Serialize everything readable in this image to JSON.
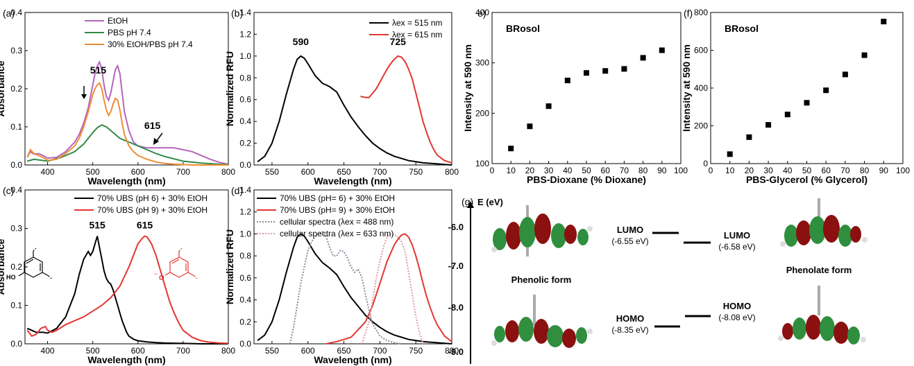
{
  "chart_data": [
    {
      "panel": "(a)",
      "type": "line",
      "xlabel": "Wavelength (nm)",
      "ylabel": "Absorbance",
      "xlim": [
        350,
        800
      ],
      "ylim": [
        0,
        0.4
      ],
      "xticks": [
        400,
        500,
        600,
        700,
        800
      ],
      "yticks": [
        0.0,
        0.1,
        0.2,
        0.3,
        0.4
      ],
      "legend": "top-center",
      "series": [
        {
          "name": "EtOH",
          "color": "#b565bd",
          "x": [
            355,
            362,
            370,
            380,
            390,
            400,
            420,
            440,
            460,
            470,
            480,
            490,
            500,
            505,
            510,
            515,
            520,
            525,
            530,
            535,
            540,
            545,
            550,
            555,
            560,
            565,
            570,
            580,
            590,
            600,
            620,
            640,
            660,
            680,
            700,
            720,
            740,
            760,
            780,
            800
          ],
          "y": [
            0.02,
            0.035,
            0.028,
            0.03,
            0.025,
            0.018,
            0.02,
            0.035,
            0.06,
            0.08,
            0.11,
            0.15,
            0.21,
            0.24,
            0.26,
            0.27,
            0.25,
            0.21,
            0.18,
            0.17,
            0.19,
            0.22,
            0.25,
            0.26,
            0.24,
            0.19,
            0.14,
            0.09,
            0.06,
            0.05,
            0.045,
            0.045,
            0.045,
            0.045,
            0.04,
            0.035,
            0.025,
            0.015,
            0.007,
            0.002
          ]
        },
        {
          "name": "PBS pH 7.4",
          "color": "#2e8b46",
          "x": [
            355,
            370,
            400,
            430,
            460,
            480,
            500,
            510,
            520,
            530,
            540,
            550,
            560,
            570,
            580,
            600,
            620,
            640,
            660,
            680,
            700,
            740,
            780,
            800
          ],
          "y": [
            0.01,
            0.015,
            0.01,
            0.02,
            0.035,
            0.055,
            0.085,
            0.098,
            0.105,
            0.1,
            0.09,
            0.08,
            0.07,
            0.065,
            0.06,
            0.05,
            0.04,
            0.03,
            0.022,
            0.016,
            0.01,
            0.005,
            0.002,
            0.001
          ]
        },
        {
          "name": "30% EtOH/PBS pH 7.4",
          "color": "#f08d35",
          "x": [
            355,
            362,
            370,
            380,
            390,
            400,
            420,
            440,
            460,
            470,
            480,
            490,
            500,
            505,
            510,
            515,
            520,
            525,
            530,
            535,
            540,
            545,
            550,
            555,
            560,
            565,
            570,
            580,
            590,
            600,
            620,
            640,
            660,
            680,
            700,
            720,
            740,
            760,
            780,
            800
          ],
          "y": [
            0.02,
            0.04,
            0.03,
            0.025,
            0.02,
            0.012,
            0.015,
            0.03,
            0.05,
            0.07,
            0.1,
            0.14,
            0.185,
            0.2,
            0.21,
            0.215,
            0.2,
            0.17,
            0.145,
            0.13,
            0.14,
            0.16,
            0.175,
            0.17,
            0.145,
            0.11,
            0.08,
            0.05,
            0.035,
            0.025,
            0.015,
            0.008,
            0.004,
            0.002,
            0.001,
            0.0,
            0.0,
            0.0,
            0.0,
            0.0
          ]
        }
      ],
      "annotations": [
        {
          "text": "515",
          "x": 512,
          "y": 0.24
        },
        {
          "text": "615",
          "x": 632,
          "y": 0.095
        }
      ]
    },
    {
      "panel": "(b)",
      "type": "line",
      "xlabel": "Wavelength (nm)",
      "ylabel": "Normalized RFU",
      "xlim": [
        525,
        800
      ],
      "ylim": [
        0,
        1.4
      ],
      "xticks": [
        550,
        600,
        650,
        700,
        750,
        800
      ],
      "yticks": [
        0.0,
        0.2,
        0.4,
        0.6,
        0.8,
        1.0,
        1.2,
        1.4
      ],
      "legend": "top-right",
      "series": [
        {
          "name": "λex = 515 nm",
          "color": "#000000",
          "x": [
            530,
            540,
            550,
            560,
            570,
            580,
            585,
            590,
            595,
            600,
            610,
            620,
            630,
            640,
            650,
            660,
            670,
            680,
            690,
            700,
            710,
            720,
            730,
            740,
            750,
            760,
            770,
            780,
            790,
            800
          ],
          "y": [
            0.03,
            0.08,
            0.2,
            0.4,
            0.65,
            0.88,
            0.97,
            1.0,
            0.98,
            0.93,
            0.82,
            0.75,
            0.72,
            0.67,
            0.55,
            0.44,
            0.35,
            0.27,
            0.2,
            0.15,
            0.11,
            0.08,
            0.06,
            0.04,
            0.03,
            0.02,
            0.015,
            0.01,
            0.005,
            0.0
          ]
        },
        {
          "name": "λex = 615 nm",
          "color": "#e2362f",
          "x": [
            673,
            680,
            685,
            690,
            695,
            700,
            705,
            710,
            715,
            720,
            725,
            730,
            735,
            740,
            745,
            750,
            755,
            760,
            765,
            770,
            775,
            780,
            790,
            800
          ],
          "y": [
            0.63,
            0.62,
            0.62,
            0.66,
            0.7,
            0.76,
            0.82,
            0.88,
            0.93,
            0.97,
            1.0,
            0.99,
            0.95,
            0.88,
            0.79,
            0.66,
            0.53,
            0.4,
            0.3,
            0.21,
            0.14,
            0.09,
            0.04,
            0.02
          ]
        }
      ],
      "annotations": [
        {
          "text": "590",
          "x": 590,
          "y": 1.1
        },
        {
          "text": "725",
          "x": 725,
          "y": 1.1
        }
      ]
    },
    {
      "panel": "(c)",
      "type": "line",
      "xlabel": "Wavelength (nm)",
      "ylabel": "Absorbance",
      "xlim": [
        350,
        800
      ],
      "ylim": [
        0,
        0.4
      ],
      "xticks": [
        400,
        500,
        600,
        700,
        800
      ],
      "yticks": [
        0.0,
        0.1,
        0.2,
        0.3,
        0.4
      ],
      "legend": "top-right",
      "series": [
        {
          "name": "70% UBS (pH 6) + 30% EtOH",
          "color": "#000000",
          "x": [
            355,
            365,
            375,
            390,
            400,
            420,
            440,
            460,
            470,
            480,
            490,
            495,
            500,
            505,
            510,
            515,
            520,
            525,
            530,
            535,
            540,
            545,
            550,
            555,
            560,
            565,
            570,
            575,
            580,
            590,
            600,
            620,
            640,
            660,
            700,
            740,
            780,
            800
          ],
          "y": [
            0.04,
            0.035,
            0.03,
            0.03,
            0.028,
            0.04,
            0.07,
            0.13,
            0.18,
            0.22,
            0.24,
            0.23,
            0.24,
            0.26,
            0.28,
            0.25,
            0.22,
            0.19,
            0.17,
            0.16,
            0.155,
            0.14,
            0.12,
            0.1,
            0.08,
            0.06,
            0.045,
            0.03,
            0.02,
            0.012,
            0.008,
            0.005,
            0.003,
            0.002,
            0.001,
            0.0,
            0.0,
            0.0
          ]
        },
        {
          "name": "70% UBS (pH 9) + 30% EtOH",
          "color": "#e2362f",
          "x": [
            355,
            365,
            375,
            385,
            395,
            400,
            410,
            420,
            440,
            460,
            480,
            500,
            520,
            540,
            560,
            580,
            590,
            600,
            610,
            615,
            620,
            630,
            640,
            650,
            660,
            670,
            680,
            690,
            700,
            720,
            740,
            760,
            780,
            800
          ],
          "y": [
            0.035,
            0.02,
            0.025,
            0.04,
            0.045,
            0.035,
            0.03,
            0.035,
            0.05,
            0.06,
            0.07,
            0.085,
            0.1,
            0.12,
            0.15,
            0.2,
            0.23,
            0.26,
            0.275,
            0.28,
            0.278,
            0.26,
            0.23,
            0.19,
            0.15,
            0.11,
            0.08,
            0.055,
            0.035,
            0.017,
            0.008,
            0.004,
            0.002,
            0.001
          ]
        }
      ],
      "annotations": [
        {
          "text": "515",
          "x": 510,
          "y": 0.3
        },
        {
          "text": "615",
          "x": 615,
          "y": 0.3
        }
      ]
    },
    {
      "panel": "(d)",
      "type": "line",
      "xlabel": "Wavelength (nm)",
      "ylabel": "Normalized RFU",
      "xlim": [
        525,
        800
      ],
      "ylim": [
        0,
        1.4
      ],
      "xticks": [
        550,
        600,
        650,
        700,
        750,
        800
      ],
      "yticks": [
        0.0,
        0.2,
        0.4,
        0.6,
        0.8,
        1.0,
        1.2,
        1.4
      ],
      "legend": "top-left",
      "series": [
        {
          "name": "70% UBS (pH= 6) + 30% EtOH",
          "color": "#000000",
          "dash": "",
          "x": [
            530,
            540,
            550,
            560,
            570,
            580,
            585,
            590,
            595,
            600,
            610,
            620,
            630,
            640,
            650,
            660,
            670,
            680,
            690,
            700,
            710,
            720,
            730,
            740,
            750,
            760,
            770,
            780,
            790,
            800
          ],
          "y": [
            0.03,
            0.08,
            0.2,
            0.4,
            0.65,
            0.88,
            0.97,
            1.0,
            0.98,
            0.93,
            0.82,
            0.74,
            0.69,
            0.63,
            0.52,
            0.42,
            0.34,
            0.26,
            0.2,
            0.15,
            0.11,
            0.08,
            0.06,
            0.04,
            0.03,
            0.02,
            0.015,
            0.01,
            0.005,
            0.0
          ]
        },
        {
          "name": "70% UBS (pH= 9) + 30% EtOH",
          "color": "#e2362f",
          "dash": "",
          "x": [
            625,
            640,
            660,
            680,
            690,
            700,
            710,
            720,
            725,
            730,
            735,
            740,
            745,
            750,
            755,
            760,
            765,
            770,
            775,
            780,
            790,
            800
          ],
          "y": [
            0.0,
            0.02,
            0.06,
            0.2,
            0.35,
            0.55,
            0.75,
            0.9,
            0.95,
            0.99,
            1.0,
            0.97,
            0.9,
            0.8,
            0.68,
            0.55,
            0.43,
            0.33,
            0.24,
            0.17,
            0.07,
            0.02
          ]
        },
        {
          "name": "cellular spectra (λex = 488 nm)",
          "color": "#8a8a9a",
          "dash": "2,2",
          "x": [
            575,
            580,
            585,
            590,
            595,
            600,
            605,
            610,
            615,
            620,
            625,
            630,
            635,
            640,
            645,
            650,
            655,
            660,
            665,
            670,
            675,
            680,
            685,
            690,
            700,
            710,
            720,
            730
          ],
          "y": [
            0.0,
            0.15,
            0.35,
            0.55,
            0.7,
            0.85,
            0.93,
            0.97,
            1.0,
            1.02,
            0.98,
            0.88,
            0.8,
            0.8,
            0.85,
            0.84,
            0.78,
            0.7,
            0.65,
            0.68,
            0.6,
            0.45,
            0.3,
            0.18,
            0.07,
            0.03,
            0.01,
            0.0
          ]
        },
        {
          "name": "cellular spectra (λex = 633 nm)",
          "color": "#d99aa0",
          "dash": "2,2",
          "x": [
            675,
            685,
            690,
            695,
            700,
            705,
            710,
            715,
            720,
            725,
            730,
            735,
            740,
            745,
            750,
            755,
            760
          ],
          "y": [
            0.0,
            0.2,
            0.4,
            0.6,
            0.75,
            0.88,
            0.97,
            1.0,
            0.99,
            0.97,
            0.93,
            0.84,
            0.65,
            0.45,
            0.25,
            0.1,
            0.0
          ]
        }
      ]
    },
    {
      "panel": "e",
      "type": "scatter",
      "title": "BRosol",
      "xlabel": "PBS-Dioxane (% Dioxane)",
      "ylabel": "Intensity at 590 nm",
      "xlim": [
        0,
        100
      ],
      "ylim": [
        100,
        400
      ],
      "xticks": [
        0,
        10,
        20,
        30,
        40,
        50,
        60,
        70,
        80,
        90,
        100
      ],
      "yticks": [
        100,
        200,
        300,
        400
      ],
      "x": [
        10,
        20,
        30,
        40,
        50,
        60,
        70,
        80,
        90
      ],
      "y": [
        130,
        174,
        214,
        265,
        280,
        284,
        288,
        310,
        325
      ]
    },
    {
      "panel": "f",
      "type": "scatter",
      "title": "BRosol",
      "xlabel": "PBS-Glycerol (% Glycerol)",
      "ylabel": "Intensity at 590 nm",
      "xlim": [
        0,
        100
      ],
      "ylim": [
        0,
        800
      ],
      "xticks": [
        0,
        10,
        20,
        30,
        40,
        50,
        60,
        70,
        80,
        90,
        100
      ],
      "yticks": [
        0,
        200,
        400,
        600,
        800
      ],
      "x": [
        10,
        20,
        30,
        40,
        50,
        60,
        70,
        80,
        90
      ],
      "y": [
        50,
        140,
        205,
        260,
        322,
        388,
        472,
        574,
        752
      ]
    }
  ],
  "g_panel": {
    "label": "(g)",
    "axis_title": "E (eV)",
    "ticks": [
      "-6.0",
      "-7.0",
      "-8.0",
      "-9.0"
    ],
    "phenolic_label": "Phenolic form",
    "phenolate_label": "Phenolate form",
    "lumo_label": "LUMO",
    "homo_label": "HOMO",
    "phenolic_lumo_value": "(-6.55 eV)",
    "phenolate_lumo_value": "(-6.58 eV)",
    "phenolic_homo_value": "(-8.35 eV)",
    "phenolate_homo_value": "(-8.08 eV)"
  },
  "structures": {
    "phenol_group": "HO",
    "phenolate_group": "O",
    "phenolate_charge": "−"
  },
  "labels": {
    "a": "(a)",
    "b": "(b)",
    "c": "(c)",
    "d": "(d)",
    "e": "e)",
    "f": "(f)"
  }
}
